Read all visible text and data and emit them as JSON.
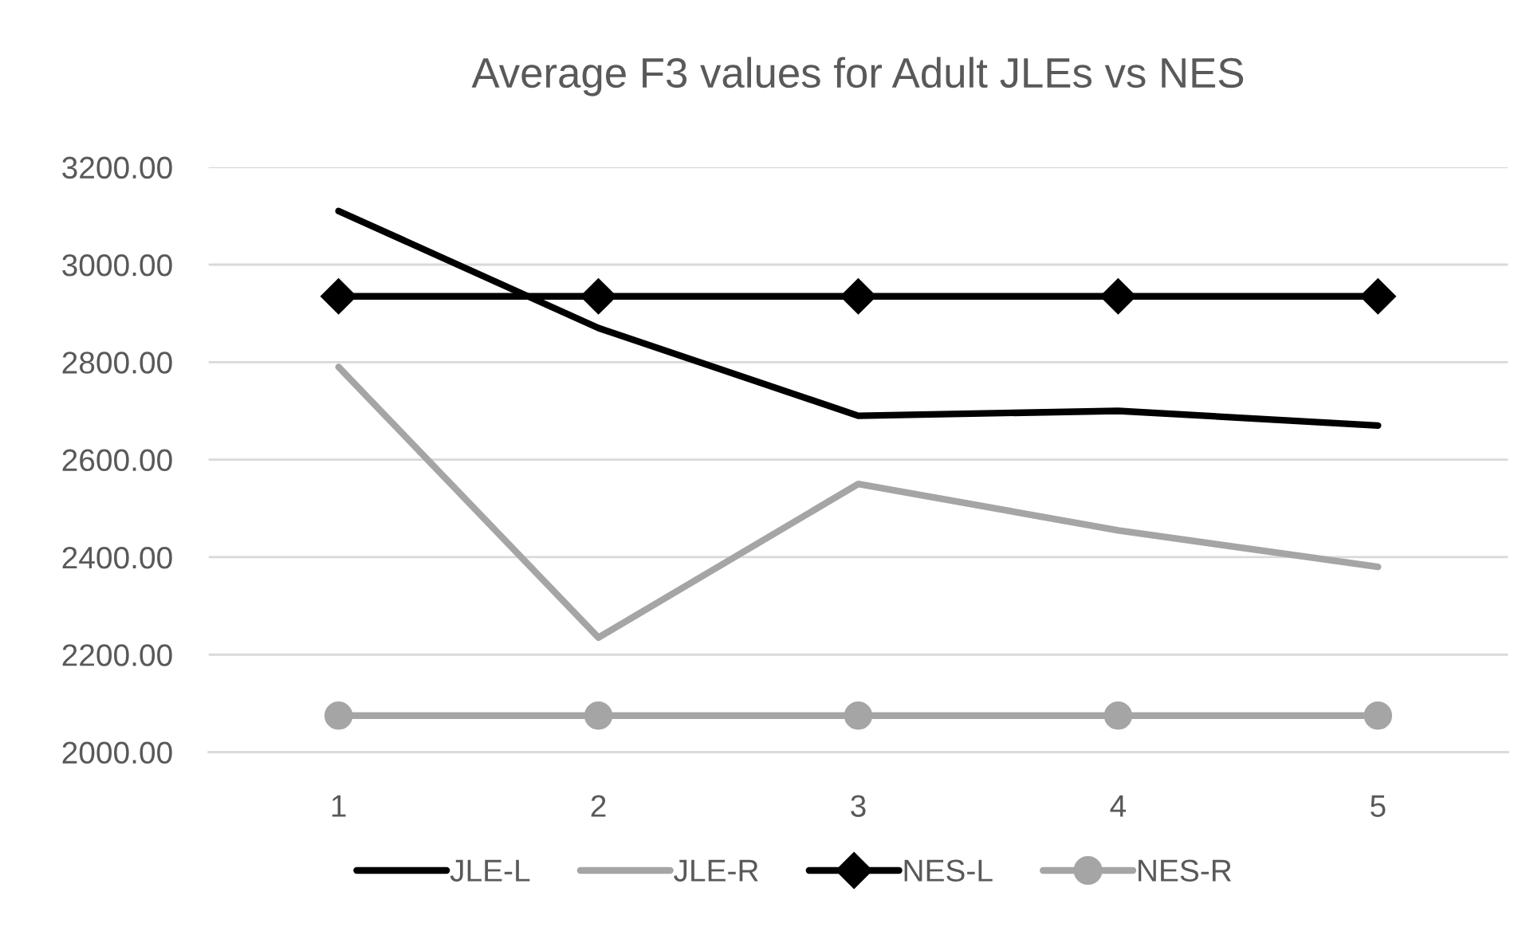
{
  "chart_data": {
    "type": "line",
    "title": "Average F3 values for Adult JLEs vs NES",
    "categories": [
      "1",
      "2",
      "3",
      "4",
      "5"
    ],
    "series": [
      {
        "name": "JLE-L",
        "color": "#000000",
        "marker": "none",
        "values": [
          3110,
          2870,
          2690,
          2700,
          2670
        ]
      },
      {
        "name": "JLE-R",
        "color": "#a5a5a5",
        "marker": "none",
        "values": [
          2790,
          2235,
          2550,
          2455,
          2380
        ]
      },
      {
        "name": "NES-L",
        "color": "#000000",
        "marker": "diamond",
        "values": [
          2935,
          2935,
          2935,
          2935,
          2935
        ]
      },
      {
        "name": "NES-R",
        "color": "#a5a5a5",
        "marker": "circle",
        "values": [
          2075,
          2075,
          2075,
          2075,
          2075
        ]
      }
    ],
    "ylim": [
      2000,
      3200
    ],
    "yticks": [
      {
        "value": 2000,
        "label": "2000.00"
      },
      {
        "value": 2200,
        "label": "2200.00"
      },
      {
        "value": 2400,
        "label": "2400.00"
      },
      {
        "value": 2600,
        "label": "2600.00"
      },
      {
        "value": 2800,
        "label": "2800.00"
      },
      {
        "value": 3000,
        "label": "3000.00"
      },
      {
        "value": 3200,
        "label": "3200.00"
      }
    ],
    "grid": "y",
    "legend": "bottom"
  }
}
